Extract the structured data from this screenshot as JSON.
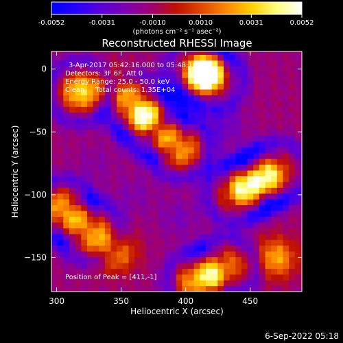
{
  "colorbar": {
    "tick_labels": [
      "-0.0052",
      "-0.0031",
      "-0.0010",
      "0.0010",
      "0.0031",
      "0.0052"
    ],
    "tick_values": [
      -0.0052,
      -0.0031,
      -0.001,
      0.001,
      0.0031,
      0.0052
    ],
    "range": [
      -0.0052,
      0.0052
    ],
    "unit_label": "(photons cm⁻² s⁻¹ asec⁻²)",
    "colors": [
      "#0000ff",
      "#2800ff",
      "#5a00d8",
      "#7e00b0",
      "#a00070",
      "#c01000",
      "#e04800",
      "#ff8800",
      "#ffd000",
      "#ffff80",
      "#ffffff"
    ]
  },
  "annotations": {
    "time": "3-Apr-2017 05:42:16.000 to 05:48:16.000",
    "detectors": "Detectors: 3F 6F, Att 0",
    "energy": "Energy Range: 25.0 - 50.0 keV",
    "clean": "Clean     Total counts: 1.35E+04",
    "peak": "Position of Peak = [411,-1]"
  },
  "footer_date": "6-Sep-2022 05:18",
  "chart_data": {
    "type": "heatmap",
    "title": "Reconstructed RHESSI Image",
    "xlabel": "Heliocentric X (arcsec)",
    "ylabel": "Heliocentric Y (arcsec)",
    "xlim": [
      296,
      490
    ],
    "ylim": [
      -177,
      14
    ],
    "x_ticks": [
      300,
      350,
      400,
      450
    ],
    "y_ticks": [
      0,
      -50,
      -100,
      -150
    ],
    "x_tick_labels": [
      "300",
      "350",
      "400",
      "450"
    ],
    "y_tick_labels": [
      "0",
      "−50",
      "−100",
      "−150"
    ],
    "peak_position": [
      411,
      -1
    ],
    "grid": false,
    "features": [
      {
        "x": 375,
        "y": -45,
        "value": 0.0045
      },
      {
        "x": 362,
        "y": -30,
        "value": 0.0038
      },
      {
        "x": 395,
        "y": -62,
        "value": 0.0036
      },
      {
        "x": 410,
        "y": 0,
        "value": 0.0052
      },
      {
        "x": 420,
        "y": -8,
        "value": 0.0042
      },
      {
        "x": 455,
        "y": -90,
        "value": 0.0048
      },
      {
        "x": 440,
        "y": -98,
        "value": 0.0036
      },
      {
        "x": 470,
        "y": -82,
        "value": 0.0032
      },
      {
        "x": 318,
        "y": -18,
        "value": 0.0034
      },
      {
        "x": 305,
        "y": -112,
        "value": 0.004
      },
      {
        "x": 325,
        "y": -128,
        "value": 0.0034
      },
      {
        "x": 345,
        "y": -145,
        "value": 0.0028
      },
      {
        "x": 410,
        "y": -168,
        "value": 0.0048
      },
      {
        "x": 430,
        "y": -158,
        "value": 0.0034
      },
      {
        "x": 470,
        "y": -150,
        "value": 0.0028
      },
      {
        "x": 345,
        "y": -15,
        "value": 0.0024
      },
      {
        "x": 395,
        "y": -118,
        "value": -0.002
      },
      {
        "x": 430,
        "y": -45,
        "value": -0.0024
      },
      {
        "x": 330,
        "y": -75,
        "value": -0.0016
      },
      {
        "x": 360,
        "y": -100,
        "value": -0.0018
      }
    ]
  }
}
